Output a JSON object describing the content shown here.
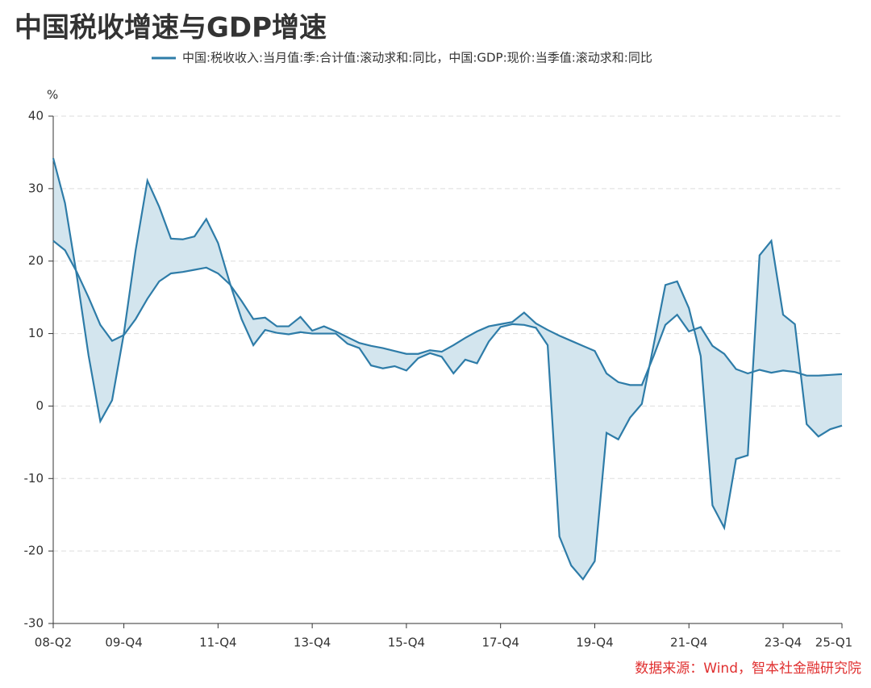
{
  "chart_data": {
    "type": "line",
    "title": "中国税收增速与GDP增速",
    "legend": "中国:税收收入:当月值:季:合计值:滚动求和:同比，中国:GDP:现价:当季值:滚动求和:同比",
    "y_unit": "%",
    "source": "数据来源：Wind，智本社金融研究院",
    "fill_between": true,
    "grid": true,
    "categories": [
      "08-Q2",
      null,
      null,
      null,
      null,
      null,
      "09-Q4",
      null,
      null,
      null,
      null,
      null,
      null,
      null,
      "11-Q4",
      null,
      null,
      null,
      null,
      null,
      null,
      null,
      "13-Q4",
      null,
      null,
      null,
      null,
      null,
      null,
      null,
      "15-Q4",
      null,
      null,
      null,
      null,
      null,
      null,
      null,
      "17-Q4",
      null,
      null,
      null,
      null,
      null,
      null,
      null,
      "19-Q4",
      null,
      null,
      null,
      null,
      null,
      null,
      null,
      "21-Q4",
      null,
      null,
      null,
      null,
      null,
      null,
      null,
      "23-Q4",
      null,
      null,
      null,
      null,
      "25-Q1"
    ],
    "series": [
      {
        "color": "#2e7ca8",
        "values": [
          34.2,
          28,
          18,
          7,
          -2.1,
          0.8,
          10,
          21.5,
          31.1,
          27.5,
          23.1,
          23.0,
          23.4,
          25.8,
          22.5,
          17,
          12,
          8.4,
          10.5,
          10.1,
          9.9,
          10.2,
          10.0,
          10.0,
          10.0,
          8.6,
          8.0,
          5.6,
          5.2,
          5.5,
          4.9,
          6.6,
          7.3,
          6.8,
          4.5,
          6.4,
          5.9,
          8.9,
          10.9,
          11.3,
          11.2,
          10.8,
          8.4,
          -18,
          -22,
          -23.9,
          -21.4,
          -3.7,
          -4.6,
          -1.6,
          0.3,
          8.4,
          16.7,
          17.2,
          13.5,
          6.9,
          -13.7,
          -16.8,
          -7.3,
          -6.8,
          20.8,
          22.8,
          12.6,
          11.3,
          -2.5,
          -4.2,
          -3.2,
          -2.7
        ]
      },
      {
        "color": "#2e7ca8",
        "values": [
          22.8,
          21.5,
          18.5,
          15,
          11.2,
          9.0,
          9.8,
          12,
          14.8,
          17.2,
          18.3,
          18.5,
          18.8,
          19.1,
          18.3,
          16.8,
          14.5,
          12.0,
          12.2,
          11.0,
          11.0,
          12.3,
          10.4,
          11.0,
          10.3,
          9.5,
          8.7,
          8.3,
          8.0,
          7.6,
          7.2,
          7.2,
          7.7,
          7.5,
          8.4,
          9.4,
          10.3,
          11.0,
          11.3,
          11.6,
          12.9,
          11.4,
          10.5,
          9.7,
          9.0,
          8.3,
          7.6,
          4.5,
          3.3,
          2.9,
          2.9,
          6.9,
          11.2,
          12.6,
          10.3,
          10.9,
          8.3,
          7.2,
          5.1,
          4.5,
          5.0,
          4.6,
          4.9,
          4.7,
          4.2,
          4.2,
          4.3,
          4.4
        ]
      }
    ],
    "fill_color": "#d3e5ee",
    "ylim": [
      -30,
      40
    ],
    "yticks": [
      -30,
      -20,
      -10,
      0,
      10,
      20,
      30,
      40
    ]
  }
}
